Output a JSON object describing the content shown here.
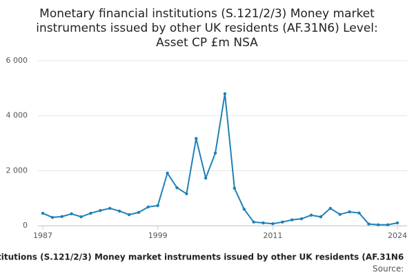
{
  "chart_data": {
    "type": "line",
    "title": [
      "Monetary financial institutions (S.121/2/3) Money market",
      "instruments issued by other UK residents (AF.31N6) Level:",
      "Asset CP £m NSA"
    ],
    "caption": "titutions (S.121/2/3) Money market instruments issued by other UK residents (AF.31N6",
    "source": "Source:",
    "x": [
      1987,
      1988,
      1989,
      1990,
      1991,
      1992,
      1993,
      1994,
      1995,
      1996,
      1997,
      1998,
      1999,
      2000,
      2001,
      2002,
      2003,
      2004,
      2005,
      2006,
      2007,
      2008,
      2009,
      2010,
      2011,
      2012,
      2013,
      2014,
      2015,
      2016,
      2017,
      2018,
      2019,
      2020,
      2021,
      2022,
      2023,
      2024
    ],
    "series": [
      {
        "color": "#1f80b8",
        "values": [
          450,
          300,
          330,
          430,
          320,
          450,
          550,
          630,
          530,
          400,
          480,
          680,
          730,
          1910,
          1380,
          1160,
          3170,
          1730,
          2640,
          4800,
          1360,
          600,
          130,
          100,
          70,
          130,
          210,
          250,
          380,
          320,
          630,
          410,
          500,
          460,
          60,
          30,
          30,
          100
        ]
      }
    ],
    "xlim": [
      1987,
      2024
    ],
    "xticks": [
      1987,
      1999,
      2011,
      2024
    ],
    "ylim": [
      0,
      6000
    ],
    "yticks": [
      {
        "value": 0,
        "label": "0"
      },
      {
        "value": 2000,
        "label": "2 000"
      },
      {
        "value": 4000,
        "label": "4 000"
      },
      {
        "value": 6000,
        "label": "6 000"
      }
    ],
    "grid": true
  }
}
